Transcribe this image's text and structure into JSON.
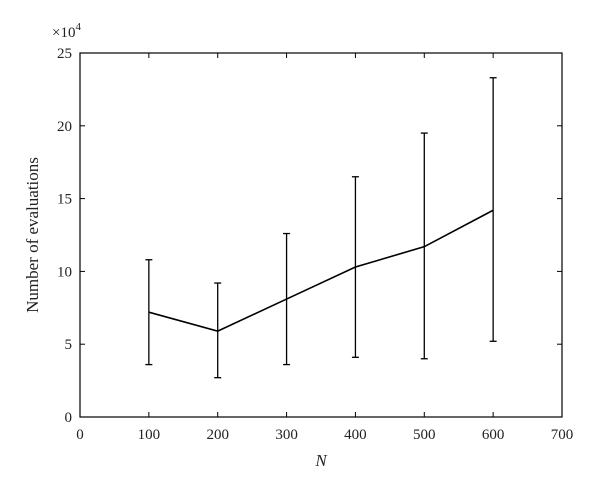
{
  "chart_data": {
    "type": "line",
    "title": "",
    "xlabel": "N",
    "ylabel": "Number of evaluations",
    "y_multiplier": {
      "base": "×10",
      "exponent": "4"
    },
    "xlim": [
      0,
      700
    ],
    "ylim": [
      0,
      25
    ],
    "xticks": [
      0,
      100,
      200,
      300,
      400,
      500,
      600,
      700
    ],
    "yticks": [
      0,
      5,
      10,
      15,
      20,
      25
    ],
    "grid": false,
    "legend": "none",
    "series": [
      {
        "x": [
          100,
          200,
          300,
          400,
          500,
          600
        ],
        "y": [
          7.2,
          5.9,
          8.1,
          10.3,
          11.7,
          14.2
        ],
        "y_lower": [
          3.6,
          2.7,
          3.6,
          4.1,
          4.0,
          5.2
        ],
        "y_upper": [
          10.8,
          9.2,
          12.6,
          16.5,
          19.5,
          23.3
        ]
      }
    ]
  }
}
